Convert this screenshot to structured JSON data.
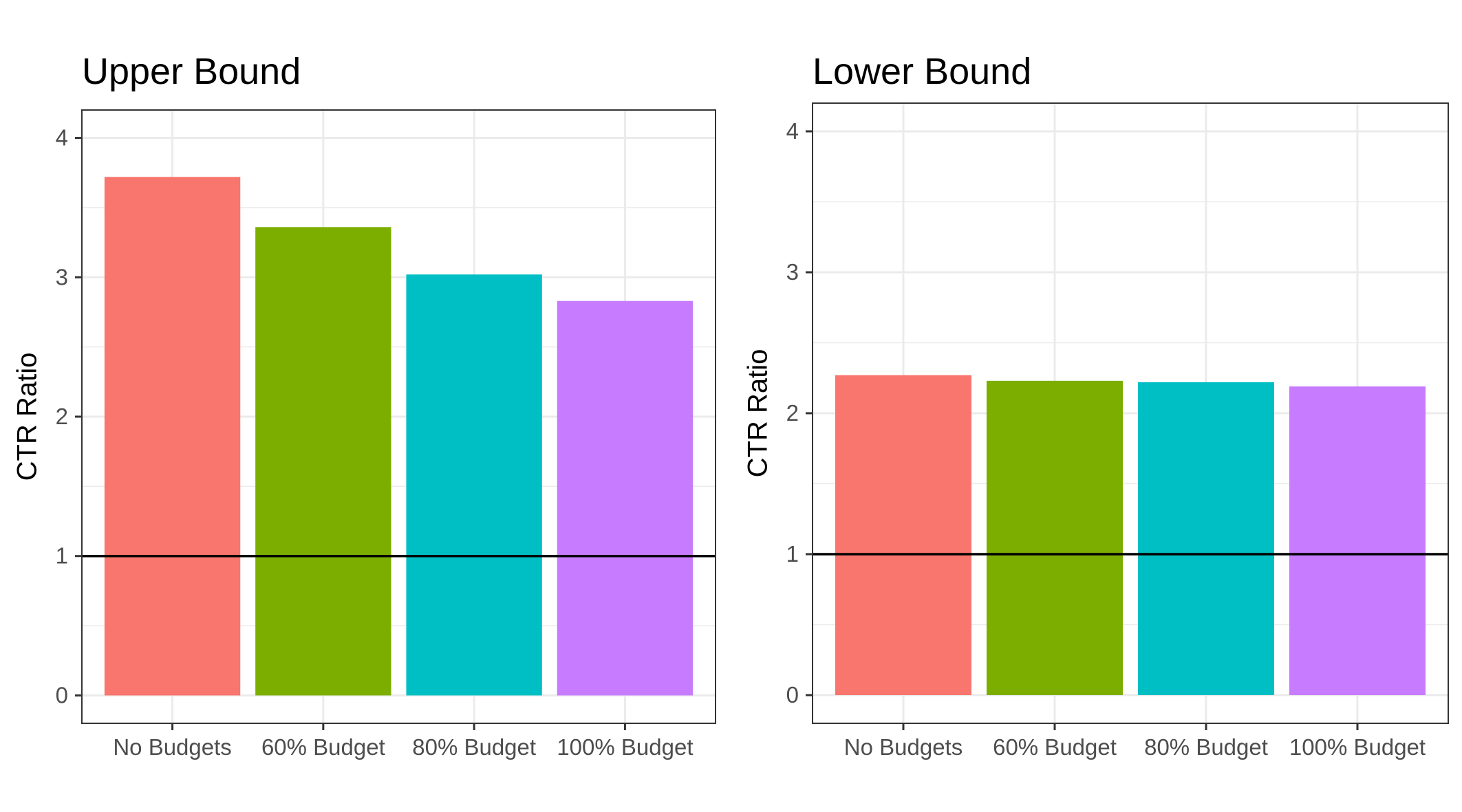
{
  "chart_data": [
    {
      "type": "bar",
      "title": "Upper Bound",
      "xlabel": "",
      "ylabel": "CTR Ratio",
      "categories": [
        "No Budgets",
        "60% Budget",
        "80% Budget",
        "100% Budget"
      ],
      "values": [
        3.72,
        3.36,
        3.02,
        2.83
      ],
      "colors": [
        "#F8766D",
        "#7CAE00",
        "#00BFC4",
        "#C77CFF"
      ],
      "ylim": [
        -0.2,
        4.2
      ],
      "yticks": [
        0,
        1,
        2,
        3,
        4
      ],
      "reference_line": 1,
      "grid": true,
      "legend": "none"
    },
    {
      "type": "bar",
      "title": "Lower Bound",
      "xlabel": "",
      "ylabel": "CTR Ratio",
      "categories": [
        "No Budgets",
        "60% Budget",
        "80% Budget",
        "100% Budget"
      ],
      "values": [
        2.27,
        2.23,
        2.22,
        2.19
      ],
      "colors": [
        "#F8766D",
        "#7CAE00",
        "#00BFC4",
        "#C77CFF"
      ],
      "ylim": [
        -0.2,
        4.2
      ],
      "yticks": [
        0,
        1,
        2,
        3,
        4
      ],
      "reference_line": 1,
      "grid": true,
      "legend": "none"
    }
  ]
}
